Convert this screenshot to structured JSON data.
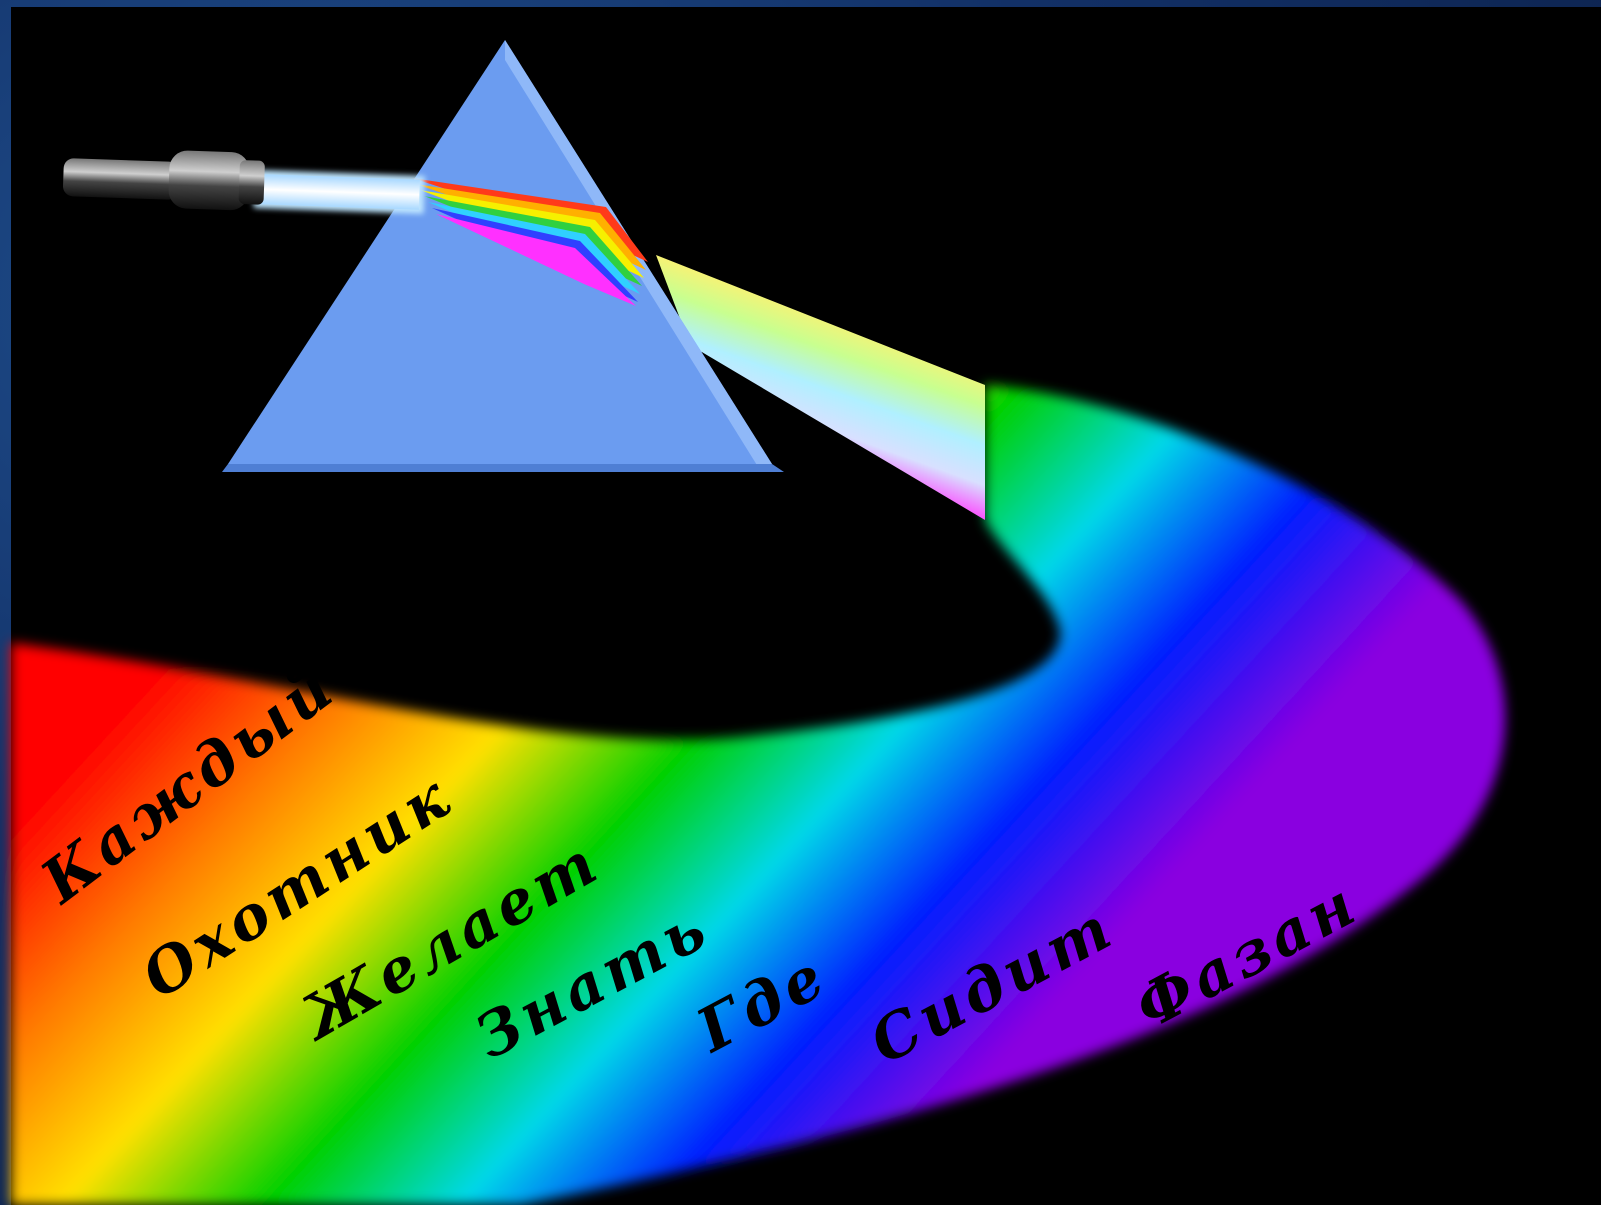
{
  "words": [
    "Каждый",
    "Охотник",
    "Желает",
    "Знать",
    "Где",
    "Сидит",
    "Фазан"
  ],
  "colors": {
    "background_frame": "#123066",
    "panel": "#000000",
    "prism": "#6b9cf0",
    "beam": "#e6f6ff",
    "spectrum": [
      "#ff0000",
      "#ff7a00",
      "#ffe000",
      "#00d000",
      "#00d8e8",
      "#0020ff",
      "#8a00e0"
    ]
  },
  "icons": {
    "light_source": "flashlight-icon",
    "prism": "triangular-prism-icon"
  }
}
